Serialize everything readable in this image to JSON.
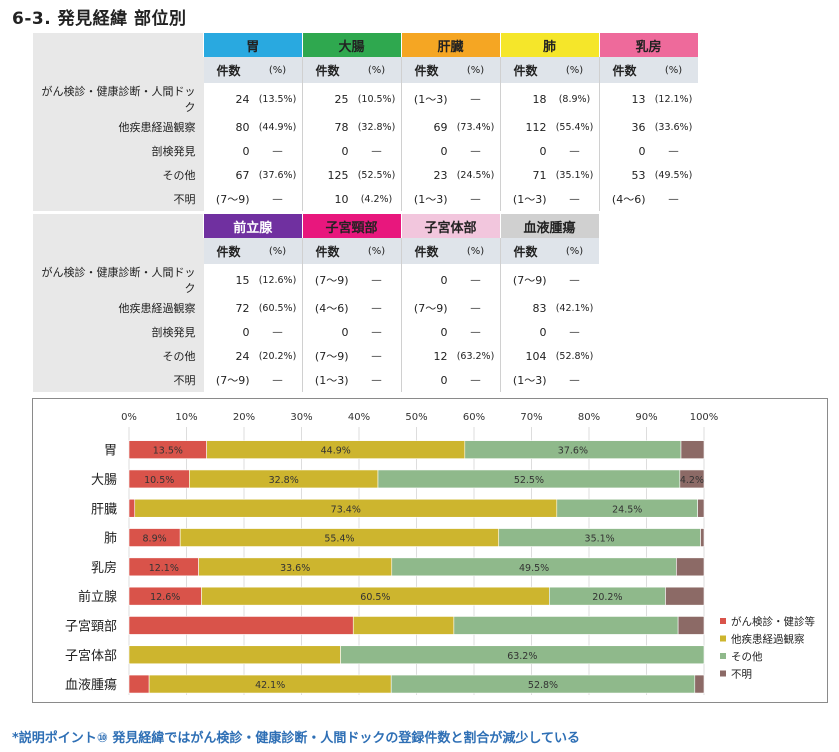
{
  "title": "6-3. 発見経緯 部位別",
  "table1": {
    "organs": [
      {
        "name": "胃",
        "color": "#29a9e0",
        "text_color": "#222"
      },
      {
        "name": "大腸",
        "color": "#2fa84f",
        "text_color": "#222"
      },
      {
        "name": "肝臓",
        "color": "#f5a623",
        "text_color": "#222"
      },
      {
        "name": "肺",
        "color": "#f5e62a",
        "text_color": "#222"
      },
      {
        "name": "乳房",
        "color": "#ee6a9b",
        "text_color": "#222"
      }
    ],
    "sub_count": "件数",
    "sub_pct": "(%)",
    "rows": [
      {
        "label": "がん検診・健康診断・人間ドック",
        "cells": [
          [
            "24",
            "(13.5%)"
          ],
          [
            "25",
            "(10.5%)"
          ],
          [
            "(1～3)",
            "―"
          ],
          [
            "18",
            "(8.9%)"
          ],
          [
            "13",
            "(12.1%)"
          ]
        ]
      },
      {
        "label": "他疾患経過観察",
        "cells": [
          [
            "80",
            "(44.9%)"
          ],
          [
            "78",
            "(32.8%)"
          ],
          [
            "69",
            "(73.4%)"
          ],
          [
            "112",
            "(55.4%)"
          ],
          [
            "36",
            "(33.6%)"
          ]
        ]
      },
      {
        "label": "剖検発見",
        "cells": [
          [
            "0",
            "―"
          ],
          [
            "0",
            "―"
          ],
          [
            "0",
            "―"
          ],
          [
            "0",
            "―"
          ],
          [
            "0",
            "―"
          ]
        ]
      },
      {
        "label": "その他",
        "cells": [
          [
            "67",
            "(37.6%)"
          ],
          [
            "125",
            "(52.5%)"
          ],
          [
            "23",
            "(24.5%)"
          ],
          [
            "71",
            "(35.1%)"
          ],
          [
            "53",
            "(49.5%)"
          ]
        ]
      },
      {
        "label": "不明",
        "cells": [
          [
            "(7～9)",
            "―"
          ],
          [
            "10",
            "(4.2%)"
          ],
          [
            "(1～3)",
            "―"
          ],
          [
            "(1～3)",
            "―"
          ],
          [
            "(4～6)",
            "―"
          ]
        ]
      }
    ]
  },
  "table2": {
    "organs": [
      {
        "name": "前立腺",
        "color": "#7030a0",
        "text_color": "#ffffff"
      },
      {
        "name": "子宮頸部",
        "color": "#e8177d",
        "text_color": "#222"
      },
      {
        "name": "子宮体部",
        "color": "#f2c6dd",
        "text_color": "#222"
      },
      {
        "name": "血液腫瘍",
        "color": "#d0d0d0",
        "text_color": "#222"
      }
    ],
    "sub_count": "件数",
    "sub_pct": "(%)",
    "rows": [
      {
        "label": "がん検診・健康診断・人間ドック",
        "cells": [
          [
            "15",
            "(12.6%)"
          ],
          [
            "(7～9)",
            "―"
          ],
          [
            "0",
            "―"
          ],
          [
            "(7～9)",
            "―"
          ]
        ]
      },
      {
        "label": "他疾患経過観察",
        "cells": [
          [
            "72",
            "(60.5%)"
          ],
          [
            "(4～6)",
            "―"
          ],
          [
            "(7～9)",
            "―"
          ],
          [
            "83",
            "(42.1%)"
          ]
        ]
      },
      {
        "label": "剖検発見",
        "cells": [
          [
            "0",
            "―"
          ],
          [
            "0",
            "―"
          ],
          [
            "0",
            "―"
          ],
          [
            "0",
            "―"
          ]
        ]
      },
      {
        "label": "その他",
        "cells": [
          [
            "24",
            "(20.2%)"
          ],
          [
            "(7～9)",
            "―"
          ],
          [
            "12",
            "(63.2%)"
          ],
          [
            "104",
            "(52.8%)"
          ]
        ]
      },
      {
        "label": "不明",
        "cells": [
          [
            "(7～9)",
            "―"
          ],
          [
            "(1～3)",
            "―"
          ],
          [
            "0",
            "―"
          ],
          [
            "(1～3)",
            "―"
          ]
        ]
      }
    ]
  },
  "chart_data": {
    "type": "bar",
    "orientation": "horizontal",
    "stacked": true,
    "categories": [
      "胃",
      "大腸",
      "肝臓",
      "肺",
      "乳房",
      "前立腺",
      "子宮頸部",
      "子宮体部",
      "血液腫瘍"
    ],
    "x_ticks": [
      "0%",
      "10%",
      "20%",
      "30%",
      "40%",
      "50%",
      "60%",
      "70%",
      "80%",
      "90%",
      "100%"
    ],
    "xlim": [
      0,
      100
    ],
    "legend_position": "right",
    "series": [
      {
        "name": "がん検診・健診等",
        "color": "#d9534a",
        "values": [
          13.5,
          10.5,
          1,
          8.9,
          12.1,
          12.6,
          39,
          0,
          3.5
        ],
        "labels": [
          "13.5%",
          "10.5%",
          "",
          "8.9%",
          "12.1%",
          "12.6%",
          "",
          "",
          ""
        ]
      },
      {
        "name": "他疾患経過観察",
        "color": "#cdb52e",
        "values": [
          44.9,
          32.8,
          73.4,
          55.4,
          33.6,
          60.5,
          17.5,
          36.8,
          42.1
        ],
        "labels": [
          "44.9%",
          "32.8%",
          "73.4%",
          "55.4%",
          "33.6%",
          "60.5%",
          "",
          "",
          "42.1%"
        ]
      },
      {
        "name": "その他",
        "color": "#8fb98b",
        "values": [
          37.6,
          52.5,
          24.5,
          35.1,
          49.5,
          20.2,
          39,
          63.2,
          52.8
        ],
        "labels": [
          "37.6%",
          "52.5%",
          "24.5%",
          "35.1%",
          "49.5%",
          "20.2%",
          "",
          "63.2%",
          "52.8%"
        ]
      },
      {
        "name": "不明",
        "color": "#8c6a66",
        "values": [
          4,
          4.2,
          1.1,
          0.6,
          4.8,
          6.7,
          4.5,
          0,
          1.6
        ],
        "labels": [
          "",
          "4.2%",
          "",
          "",
          "",
          "",
          "",
          "",
          ""
        ]
      }
    ]
  },
  "footnote": "*説明ポイント⑩ 発見経緯ではがん検診・健康診断・人間ドックの登録件数と割合が減少している"
}
